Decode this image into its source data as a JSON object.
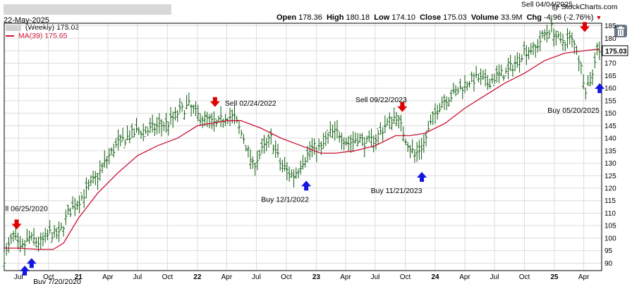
{
  "header": {
    "date": "22-May-2025",
    "open_label": "Open",
    "open": "178.36",
    "high_label": "High",
    "high": "180.18",
    "low_label": "Low",
    "low": "174.10",
    "close_label": "Close",
    "close": "175.03",
    "volume_label": "Volume",
    "volume": "33.9M",
    "chg_label": "Chg",
    "chg": "-4.96 (-2.76%)",
    "chg_arrow": "▼",
    "watermark": "@ StockCharts.com"
  },
  "legend": {
    "price": "(Weekly) 175.03",
    "ma": "MA(39) 175.65"
  },
  "last_price_label": "175.03",
  "colors": {
    "up_bar": "#0a5a0a",
    "ma_line": "#cc1133",
    "sell_arrow": "#e00000",
    "buy_arrow": "#1515e0",
    "grid": "#dcdcdc",
    "frame": "#000000",
    "redacted_box": "#d8d8d8"
  },
  "icons": {
    "delete": "trash-icon"
  },
  "chart_data": {
    "type": "line",
    "title": "",
    "ylim": [
      87,
      186
    ],
    "y_ticks": [
      90,
      95,
      100,
      105,
      110,
      115,
      120,
      125,
      130,
      135,
      140,
      145,
      150,
      155,
      160,
      165,
      170,
      175,
      180,
      185
    ],
    "x_ticks": [
      {
        "label": "Jul",
        "date": "2020-07-01"
      },
      {
        "label": "Oct",
        "date": "2020-10-01"
      },
      {
        "label": "21",
        "date": "2021-01-01"
      },
      {
        "label": "Apr",
        "date": "2021-04-01"
      },
      {
        "label": "Jul",
        "date": "2021-07-01"
      },
      {
        "label": "Oct",
        "date": "2021-10-01"
      },
      {
        "label": "22",
        "date": "2022-01-01"
      },
      {
        "label": "Apr",
        "date": "2022-04-01"
      },
      {
        "label": "Jul",
        "date": "2022-07-01"
      },
      {
        "label": "Oct",
        "date": "2022-10-01"
      },
      {
        "label": "23",
        "date": "2023-01-01"
      },
      {
        "label": "Apr",
        "date": "2023-04-01"
      },
      {
        "label": "Jul",
        "date": "2023-07-01"
      },
      {
        "label": "Oct",
        "date": "2023-10-01"
      },
      {
        "label": "24",
        "date": "2024-01-01"
      },
      {
        "label": "Apr",
        "date": "2024-04-01"
      },
      {
        "label": "Jul",
        "date": "2024-07-01"
      },
      {
        "label": "Oct",
        "date": "2024-10-01"
      },
      {
        "label": "25",
        "date": "2025-01-01"
      },
      {
        "label": "Apr",
        "date": "2025-04-01"
      }
    ],
    "series": [
      {
        "name": "(Weekly)",
        "style": "ohlc-bars",
        "points": [
          [
            "2020-05-18",
            92
          ],
          [
            "2020-06-15",
            101
          ],
          [
            "2020-07-06",
            95
          ],
          [
            "2020-08-03",
            100
          ],
          [
            "2020-09-07",
            98
          ],
          [
            "2020-10-05",
            102
          ],
          [
            "2020-11-02",
            101
          ],
          [
            "2020-11-30",
            110
          ],
          [
            "2020-12-28",
            114
          ],
          [
            "2021-02-01",
            120
          ],
          [
            "2021-03-01",
            125
          ],
          [
            "2021-04-05",
            133
          ],
          [
            "2021-05-03",
            138
          ],
          [
            "2021-06-07",
            141
          ],
          [
            "2021-07-05",
            143
          ],
          [
            "2021-08-02",
            143
          ],
          [
            "2021-09-06",
            145
          ],
          [
            "2021-10-04",
            146
          ],
          [
            "2021-11-01",
            150
          ],
          [
            "2021-12-06",
            153
          ],
          [
            "2022-01-03",
            149
          ],
          [
            "2022-02-07",
            147
          ],
          [
            "2022-02-28",
            145
          ],
          [
            "2022-03-28",
            149
          ],
          [
            "2022-04-25",
            148
          ],
          [
            "2022-05-23",
            140
          ],
          [
            "2022-06-20",
            129
          ],
          [
            "2022-07-18",
            135
          ],
          [
            "2022-08-15",
            140
          ],
          [
            "2022-09-12",
            130
          ],
          [
            "2022-10-03",
            127
          ],
          [
            "2022-10-24",
            125
          ],
          [
            "2022-11-21",
            131
          ],
          [
            "2022-12-19",
            136
          ],
          [
            "2023-01-16",
            136
          ],
          [
            "2023-02-13",
            142
          ],
          [
            "2023-03-13",
            142
          ],
          [
            "2023-04-10",
            138
          ],
          [
            "2023-05-08",
            140
          ],
          [
            "2023-06-05",
            138
          ],
          [
            "2023-07-03",
            140
          ],
          [
            "2023-08-07",
            146
          ],
          [
            "2023-09-04",
            149
          ],
          [
            "2023-10-02",
            140
          ],
          [
            "2023-10-30",
            133
          ],
          [
            "2023-11-27",
            138
          ],
          [
            "2023-12-25",
            148
          ],
          [
            "2024-01-22",
            155
          ],
          [
            "2024-02-19",
            157
          ],
          [
            "2024-03-18",
            160
          ],
          [
            "2024-04-15",
            163
          ],
          [
            "2024-05-13",
            164
          ],
          [
            "2024-06-10",
            162
          ],
          [
            "2024-07-08",
            165
          ],
          [
            "2024-08-05",
            166
          ],
          [
            "2024-09-02",
            170
          ],
          [
            "2024-09-30",
            175
          ],
          [
            "2024-11-04",
            176
          ],
          [
            "2024-12-02",
            182
          ],
          [
            "2024-12-23",
            184
          ],
          [
            "2025-01-20",
            178
          ],
          [
            "2025-02-17",
            180
          ],
          [
            "2025-03-10",
            176
          ],
          [
            "2025-04-07",
            160
          ],
          [
            "2025-04-28",
            165
          ],
          [
            "2025-05-12",
            178
          ],
          [
            "2025-05-19",
            175
          ]
        ]
      },
      {
        "name": "MA(39)",
        "style": "line",
        "points": [
          [
            "2020-05-18",
            96
          ],
          [
            "2020-07-01",
            96
          ],
          [
            "2020-09-01",
            95.5
          ],
          [
            "2020-10-15",
            95.5
          ],
          [
            "2020-11-16",
            98
          ],
          [
            "2021-01-01",
            108
          ],
          [
            "2021-03-01",
            118
          ],
          [
            "2021-05-01",
            126
          ],
          [
            "2021-07-01",
            133
          ],
          [
            "2021-09-01",
            137
          ],
          [
            "2021-11-01",
            140
          ],
          [
            "2022-01-01",
            145
          ],
          [
            "2022-02-15",
            146
          ],
          [
            "2022-04-01",
            147
          ],
          [
            "2022-05-15",
            147
          ],
          [
            "2022-07-15",
            144
          ],
          [
            "2022-09-15",
            140
          ],
          [
            "2022-11-15",
            137
          ],
          [
            "2023-01-15",
            134
          ],
          [
            "2023-03-01",
            134
          ],
          [
            "2023-05-01",
            135
          ],
          [
            "2023-07-01",
            137
          ],
          [
            "2023-09-01",
            141
          ],
          [
            "2023-10-15",
            141
          ],
          [
            "2023-12-01",
            142
          ],
          [
            "2024-02-01",
            146
          ],
          [
            "2024-04-01",
            152
          ],
          [
            "2024-06-01",
            157
          ],
          [
            "2024-08-01",
            162
          ],
          [
            "2024-10-01",
            166
          ],
          [
            "2024-12-01",
            171
          ],
          [
            "2025-02-01",
            174
          ],
          [
            "2025-04-01",
            175
          ],
          [
            "2025-05-19",
            175.65
          ]
        ]
      }
    ],
    "signals": [
      {
        "type": "sell",
        "date": "2020-06-25",
        "price": 103.5,
        "label": "ll 06/25/2020"
      },
      {
        "type": "buy",
        "date": "2020-07-20",
        "price": 89,
        "label": "Buy 7/20/2020"
      },
      {
        "type": "buy",
        "date": "2020-08-10",
        "price": 92,
        "label": ""
      },
      {
        "type": "sell",
        "date": "2022-02-24",
        "price": 152.5,
        "label": "Sell 02/24/2022"
      },
      {
        "type": "buy",
        "date": "2022-12-01",
        "price": 123,
        "label": "Buy 12/1/2022"
      },
      {
        "type": "sell",
        "date": "2023-09-22",
        "price": 150.5,
        "label": "Sell 09/22/2023"
      },
      {
        "type": "buy",
        "date": "2023-11-21",
        "price": 126.5,
        "label": "Buy 11/21/2023"
      },
      {
        "type": "sell",
        "date": "2025-04-04",
        "price": 182.5,
        "label": "Sell 04/04/2025"
      },
      {
        "type": "buy",
        "date": "2025-05-20",
        "price": 162,
        "label": "Buy 05/20/2025"
      }
    ]
  }
}
